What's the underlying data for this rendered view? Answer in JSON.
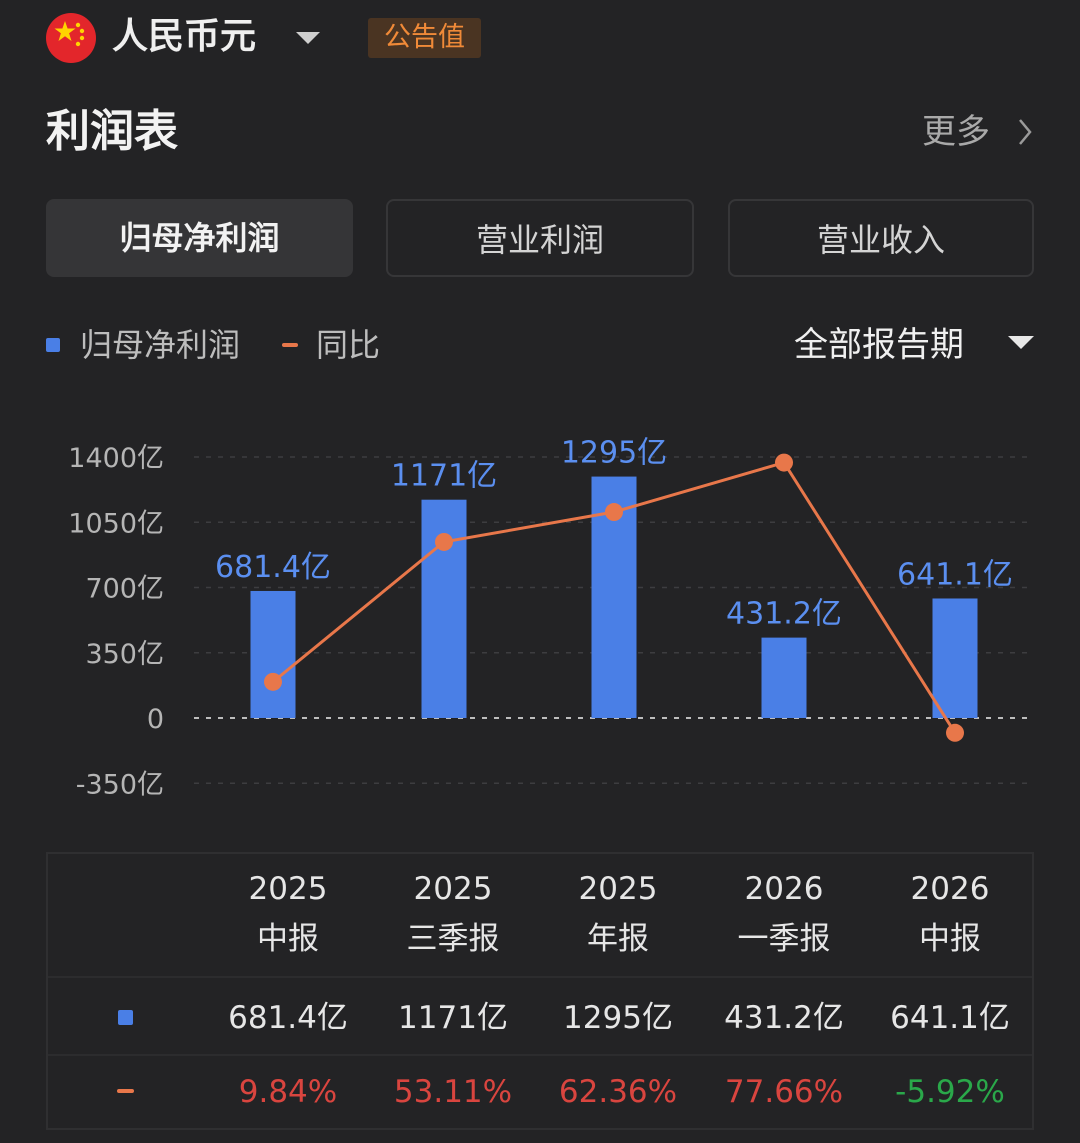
{
  "header": {
    "currency": "人民币元",
    "badge": "公告值",
    "flag_icon": "china-flag-icon"
  },
  "title": "利润表",
  "more_label": "更多",
  "tabs": [
    {
      "label": "归母净利润",
      "active": true
    },
    {
      "label": "营业利润",
      "active": false
    },
    {
      "label": "营业收入",
      "active": false
    }
  ],
  "legend": {
    "bar_label": "归母净利润",
    "line_label": "同比"
  },
  "period_selector": "全部报告期",
  "colors": {
    "bar": "#4a7fe6",
    "line": "#e8774a",
    "positive": "#d9453f",
    "negative": "#2aa84a",
    "badge_text": "#f08a38"
  },
  "chart_data": {
    "type": "bar",
    "categories": [
      "2025 中报",
      "2025 三季报",
      "2025 年报",
      "2026 一季报",
      "2026 中报"
    ],
    "y_ticks": [
      "1400亿",
      "1050亿",
      "700亿",
      "350亿",
      "0",
      "-350亿"
    ],
    "ylim": [
      -350,
      1400
    ],
    "series": [
      {
        "name": "归母净利润",
        "type": "bar",
        "values": [
          681.4,
          1171,
          1295,
          431.2,
          641.1
        ],
        "labels": [
          "681.4亿",
          "1171亿",
          "1295亿",
          "431.2亿",
          "641.1亿"
        ]
      },
      {
        "name": "同比",
        "type": "line",
        "values": [
          9.84,
          53.11,
          62.36,
          77.66,
          -5.92
        ]
      }
    ]
  },
  "table": {
    "columns": [
      {
        "year": "2025",
        "period": "中报",
        "value": "681.4亿",
        "yoy": "9.84%",
        "yoy_sign": "pos"
      },
      {
        "year": "2025",
        "period": "三季报",
        "value": "1171亿",
        "yoy": "53.11%",
        "yoy_sign": "pos"
      },
      {
        "year": "2025",
        "period": "年报",
        "value": "1295亿",
        "yoy": "62.36%",
        "yoy_sign": "pos"
      },
      {
        "year": "2026",
        "period": "一季报",
        "value": "431.2亿",
        "yoy": "77.66%",
        "yoy_sign": "pos"
      },
      {
        "year": "2026",
        "period": "中报",
        "value": "641.1亿",
        "yoy": "-5.92%",
        "yoy_sign": "neg"
      }
    ]
  }
}
